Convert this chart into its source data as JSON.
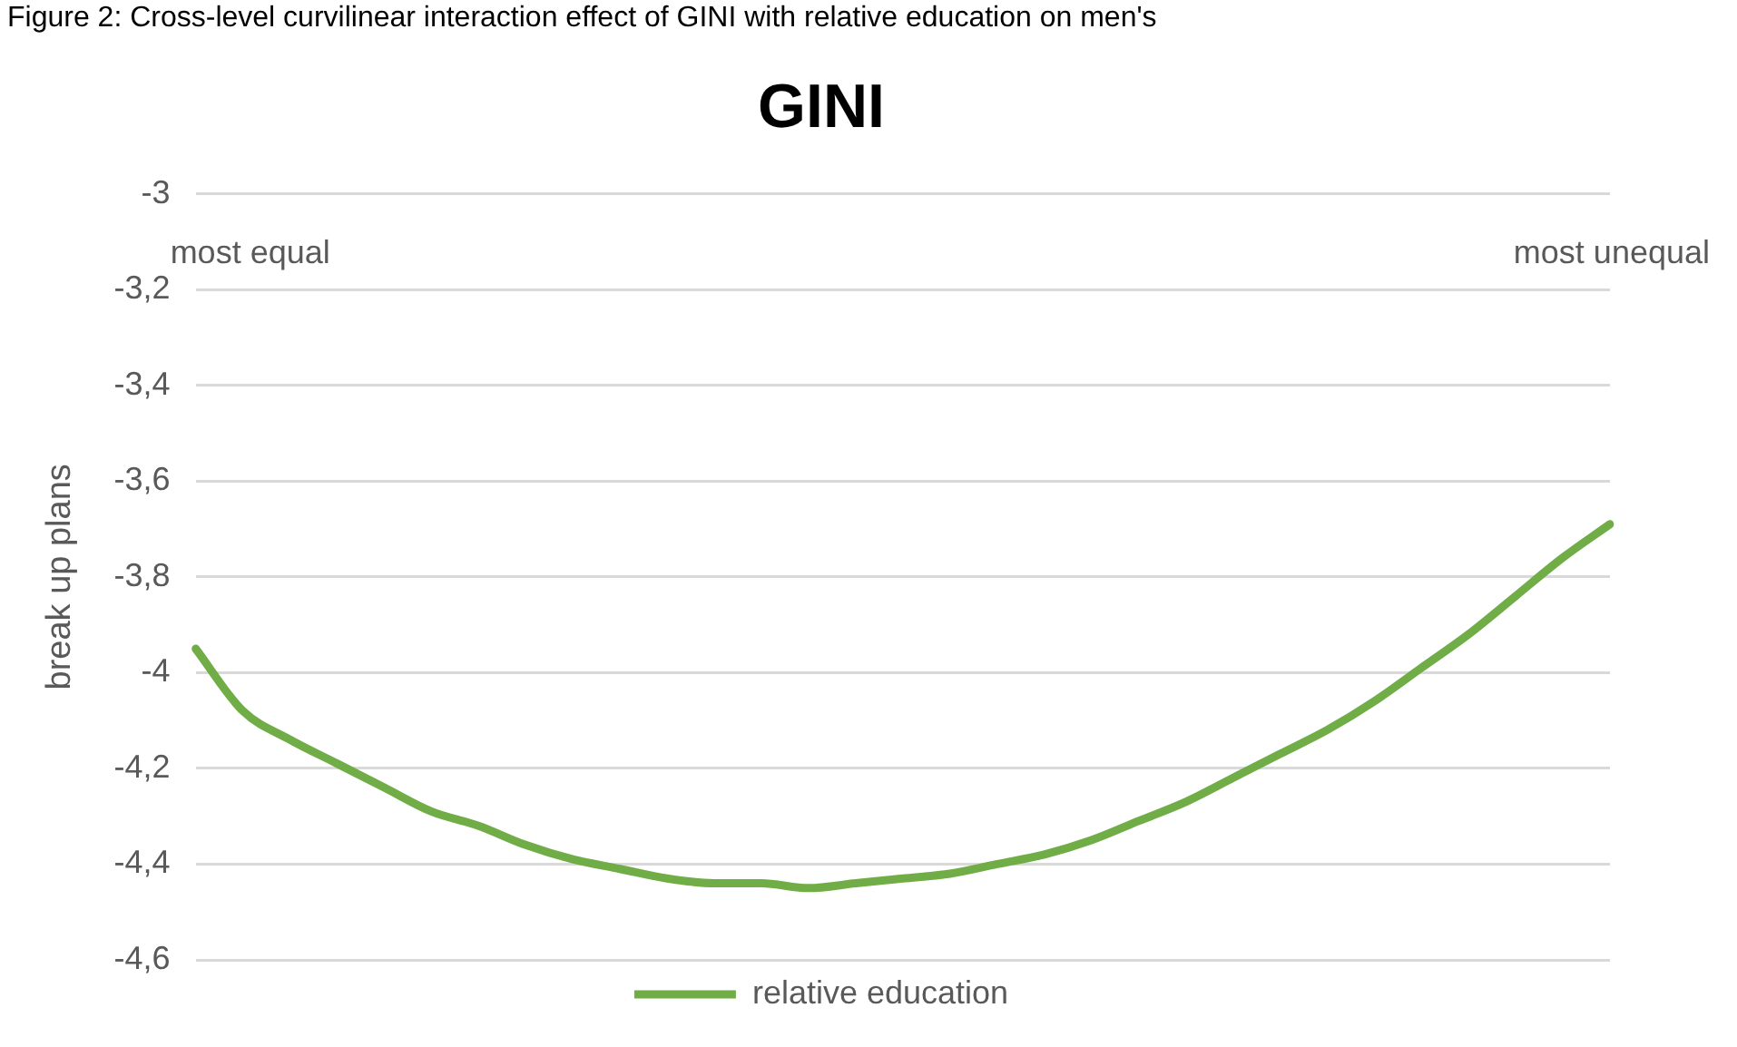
{
  "chart_data": {
    "type": "line",
    "title": "GINI",
    "ylabel": "break up plans",
    "annotations": [
      "Figure 2: Cross-level curvilinear interaction effect of GINI with relative education on men's",
      "most equal",
      "most unequal"
    ],
    "categories": [
      null,
      null,
      null,
      null,
      null,
      null,
      null,
      null,
      null,
      null,
      null,
      null,
      null,
      null,
      null,
      null,
      null,
      null,
      null,
      null,
      null,
      null,
      null,
      null,
      null,
      null,
      null,
      null,
      null,
      null,
      null
    ],
    "series": [
      {
        "name": "relative education",
        "color": "#70ad47",
        "values": [
          -3.95,
          -4.08,
          -4.14,
          -4.19,
          -4.24,
          -4.29,
          -4.32,
          -4.36,
          -4.39,
          -4.41,
          -4.43,
          -4.44,
          -4.44,
          -4.45,
          -4.44,
          -4.43,
          -4.42,
          -4.4,
          -4.38,
          -4.35,
          -4.31,
          -4.27,
          -4.22,
          -4.17,
          -4.12,
          -4.06,
          -3.99,
          -3.92,
          -3.84,
          -3.76,
          -3.69
        ]
      }
    ],
    "ylim": [
      -4.6,
      -3
    ],
    "yticks": [
      -3,
      {
        "value": -3.2,
        "label": "-3,2"
      },
      {
        "value": -3.4,
        "label": "-3,4"
      },
      {
        "value": -3.6,
        "label": "-3,6"
      },
      {
        "value": -3.8,
        "label": "-3,8"
      },
      -4,
      {
        "value": -4.2,
        "label": "-4,2"
      },
      {
        "value": -4.4,
        "label": "-4,4"
      },
      {
        "value": -4.6,
        "label": "-4,6"
      }
    ],
    "grid": "y",
    "legend": "bottom",
    "marker": "none",
    "line_style": "solid"
  }
}
